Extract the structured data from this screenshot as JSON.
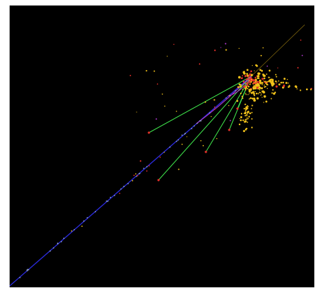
{
  "display": {
    "background": "#000000",
    "frame_color": "#ffffff"
  },
  "colors": {
    "beam_track": "#2a2ad8",
    "beam_hits": "#8fa3c6",
    "charged_tracks": "#3ee04a",
    "energy_deposits": "#f2c21a",
    "hot_deposits": "#e8302a",
    "soft_tracks": "#b03ad0"
  },
  "tracks": [
    {
      "type": "beam",
      "color": "beam_track"
    },
    {
      "type": "charged",
      "color": "charged_tracks"
    },
    {
      "type": "charged",
      "color": "charged_tracks"
    },
    {
      "type": "charged",
      "color": "charged_tracks"
    },
    {
      "type": "charged",
      "color": "charged_tracks"
    },
    {
      "type": "soft",
      "color": "soft_tracks"
    },
    {
      "type": "soft",
      "color": "soft_tracks"
    }
  ]
}
